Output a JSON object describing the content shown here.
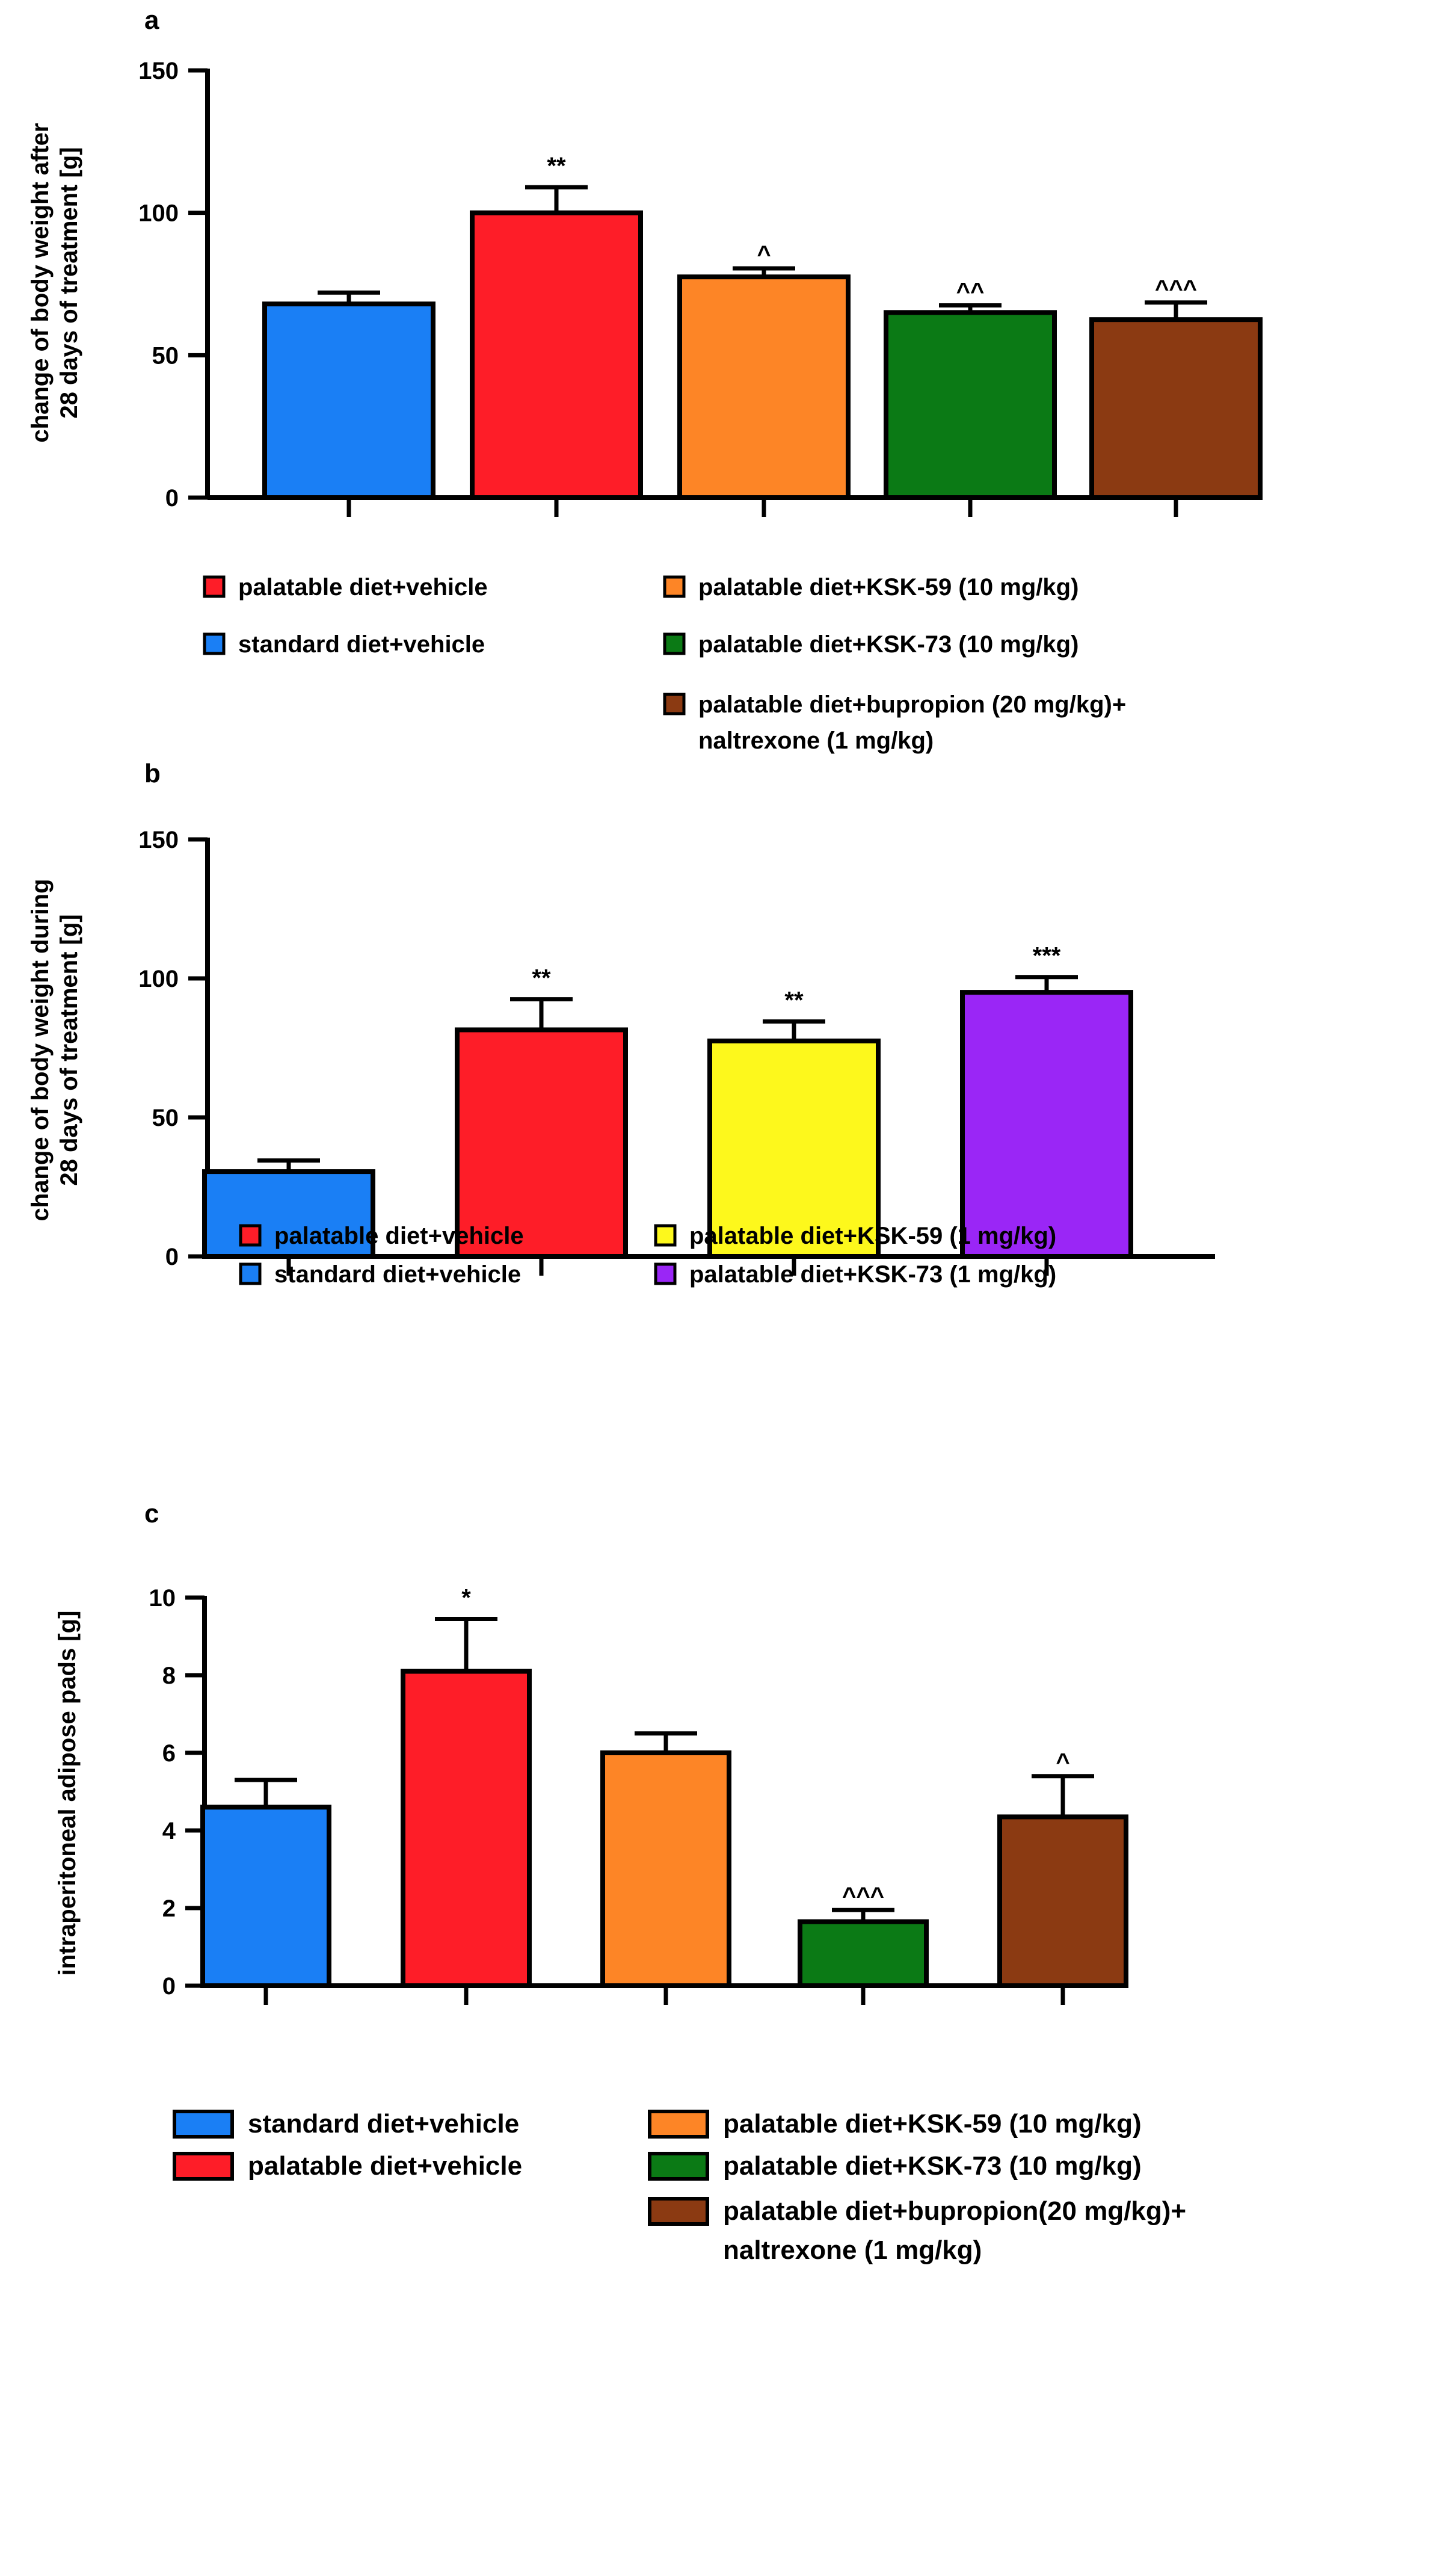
{
  "chart_data": [
    {
      "type": "bar",
      "panel_label": "a",
      "ylabel_lines": [
        "change of body weight after",
        "28 days of treatment [g]"
      ],
      "ylim": [
        0,
        150
      ],
      "yticks": [
        0,
        50,
        100,
        150
      ],
      "grid": false,
      "categories": [
        "standard diet+vehicle",
        "palatable diet+vehicle",
        "palatable diet+KSK-59 (10 mg/kg)",
        "palatable diet+KSK-73 (10 mg/kg)",
        "palatable diet+bupropion (20 mg/kg)+ naltrexone (1 mg/kg)"
      ],
      "values": [
        68,
        100,
        77.5,
        65,
        62.5
      ],
      "errors": [
        4,
        9,
        3,
        2.5,
        6
      ],
      "colors": [
        "#1a7ff5",
        "#fe1d28",
        "#fd8526",
        "#0b7a15",
        "#8b3a12"
      ],
      "annotations": [
        "",
        "**",
        "^",
        "^^",
        "^^^"
      ],
      "legend": {
        "placement": "bottom",
        "items": [
          {
            "label": "palatable diet+vehicle",
            "color": "#fe1d28",
            "col": 0,
            "row": 0
          },
          {
            "label": "standard diet+vehicle",
            "color": "#1a7ff5",
            "col": 0,
            "row": 1
          },
          {
            "label": "palatable diet+KSK-59 (10 mg/kg)",
            "color": "#fd8526",
            "col": 1,
            "row": 0
          },
          {
            "label": "palatable diet+KSK-73 (10 mg/kg)",
            "color": "#0b7a15",
            "col": 1,
            "row": 1
          },
          {
            "label": "palatable diet+bupropion (20 mg/kg)+",
            "label2": "naltrexone (1 mg/kg)",
            "color": "#8b3a12",
            "col": 1,
            "row": 2
          }
        ]
      }
    },
    {
      "type": "bar",
      "panel_label": "b",
      "ylabel_lines": [
        "change of body weight during",
        "28 days of treatment [g]"
      ],
      "ylim": [
        0,
        150
      ],
      "yticks": [
        0,
        50,
        100,
        150
      ],
      "grid": false,
      "categories": [
        "standard diet+vehicle",
        "palatable diet+vehicle",
        "palatable diet+KSK-59 (1 mg/kg)",
        "palatable diet+KSK-73 (1 mg/kg)"
      ],
      "values": [
        30.5,
        81.5,
        77.5,
        95
      ],
      "errors": [
        4,
        11,
        7,
        5.5
      ],
      "colors": [
        "#1a7ff5",
        "#fe1d28",
        "#fdf81c",
        "#9a26f6"
      ],
      "annotations": [
        "",
        "**",
        "**",
        "***"
      ],
      "legend": {
        "placement": "bottom",
        "items": [
          {
            "label": "palatable diet+vehicle",
            "color": "#fe1d28",
            "col": 0,
            "row": 0
          },
          {
            "label": "standard diet+vehicle",
            "color": "#1a7ff5",
            "col": 0,
            "row": 1
          },
          {
            "label": "palatable diet+KSK-59 (1 mg/kg)",
            "color": "#fdf81c",
            "col": 1,
            "row": 0
          },
          {
            "label": "palatable diet+KSK-73 (1 mg/kg)",
            "color": "#9a26f6",
            "col": 1,
            "row": 1
          }
        ]
      }
    },
    {
      "type": "bar",
      "panel_label": "c",
      "ylabel_lines": [
        "intraperitoneal adipose pads [g]"
      ],
      "ylim": [
        0,
        10
      ],
      "yticks": [
        0,
        2,
        4,
        6,
        8,
        10
      ],
      "grid": false,
      "categories": [
        "standard diet+vehicle",
        "palatable diet+vehicle",
        "palatable diet+KSK-59 (10 mg/kg)",
        "palatable diet+KSK-73 (10 mg/kg)",
        "palatable diet+bupropion(20 mg/kg)+ naltrexone (1 mg/kg)"
      ],
      "values": [
        4.6,
        8.1,
        6.0,
        1.65,
        4.35
      ],
      "errors": [
        0.7,
        1.35,
        0.5,
        0.3,
        1.05
      ],
      "colors": [
        "#1a7ff5",
        "#fe1d28",
        "#fd8526",
        "#0b7a15",
        "#8b3a12"
      ],
      "annotations": [
        "",
        "*",
        "",
        "^^^",
        "^"
      ],
      "legend": {
        "placement": "bottom",
        "items": [
          {
            "label": "standard diet+vehicle",
            "color": "#1a7ff5",
            "col": 0,
            "row": 0
          },
          {
            "label": "palatable diet+vehicle",
            "color": "#fe1d28",
            "col": 0,
            "row": 1
          },
          {
            "label": "palatable diet+KSK-59 (10 mg/kg)",
            "color": "#fd8526",
            "col": 1,
            "row": 0
          },
          {
            "label": "palatable diet+KSK-73 (10 mg/kg)",
            "color": "#0b7a15",
            "col": 1,
            "row": 1
          },
          {
            "label": "palatable diet+bupropion(20 mg/kg)+",
            "label2": "naltrexone (1 mg/kg)",
            "color": "#8b3a12",
            "col": 1,
            "row": 2
          }
        ]
      }
    }
  ]
}
